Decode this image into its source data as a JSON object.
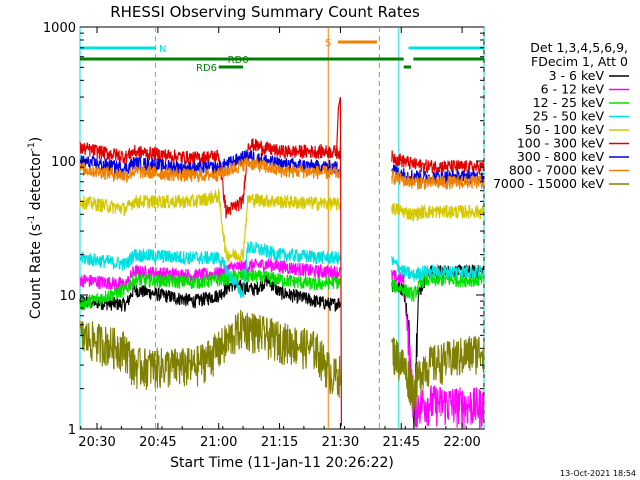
{
  "chart_data": {
    "type": "line",
    "title": "RHESSI Observing Summary Count Rates",
    "xlabel": "Start Time (11-Jan-11 20:26:22)",
    "ylabel": "Count Rate (s",
    "ylabel_sup": "-1",
    "ylabel_end": " detector",
    "ylabel_close": ")",
    "y_scale": "log",
    "ylim": [
      1,
      1000
    ],
    "xlim_minutes": [
      20.43,
      22.09
    ],
    "y_ticks": [
      {
        "value": 1,
        "label": "1"
      },
      {
        "value": 10,
        "label": "10"
      },
      {
        "value": 100,
        "label": "100"
      },
      {
        "value": 1000,
        "label": "1000"
      }
    ],
    "x_ticks": [
      {
        "value": 20.5,
        "label": "20:30"
      },
      {
        "value": 20.75,
        "label": "20:45"
      },
      {
        "value": 21.0,
        "label": "21:00"
      },
      {
        "value": 21.25,
        "label": "21:15"
      },
      {
        "value": 21.5,
        "label": "21:30"
      },
      {
        "value": 21.75,
        "label": "21:45"
      },
      {
        "value": 22.0,
        "label": "22:00"
      }
    ],
    "legend": {
      "placement": "right",
      "header": [
        "Det 1,3,4,5,6,9,",
        "FDecim 1, Att 0"
      ],
      "entries": [
        {
          "label": "3 - 6 keV",
          "color": "#000000"
        },
        {
          "label": "6 - 12 keV",
          "color": "#ff00ff"
        },
        {
          "label": "12 - 25 keV",
          "color": "#00e000"
        },
        {
          "label": "25 - 50 keV",
          "color": "#00e0e0"
        },
        {
          "label": "50 - 100 keV",
          "color": "#d4c800"
        },
        {
          "label": "100 - 300 keV",
          "color": "#e00000"
        },
        {
          "label": "300 - 800 keV",
          "color": "#0000e0"
        },
        {
          "label": "800 - 7000 keV",
          "color": "#f08000"
        },
        {
          "label": "7000 - 15000 keV",
          "color": "#808000"
        }
      ]
    },
    "flag_bars": [
      {
        "label": "N",
        "color": "#00e0e0",
        "level": 1,
        "spans": [
          [
            20.43,
            20.74
          ],
          [
            21.78,
            22.09
          ]
        ],
        "label_at": 20.77
      },
      {
        "label": "S",
        "color": "#f08000",
        "level": 0,
        "spans": [
          [
            21.49,
            21.65
          ]
        ],
        "label_at": 21.45
      },
      {
        "label": "RD0",
        "color": "#008000",
        "level": 2,
        "spans": [
          [
            20.43,
            21.76
          ],
          [
            21.8,
            22.09
          ]
        ],
        "label_at": 21.08
      },
      {
        "label": "RD6",
        "color": "#008000",
        "level": 3,
        "spans": [
          [
            21.0,
            21.1
          ],
          [
            21.76,
            21.79
          ]
        ],
        "label_at": 20.95
      }
    ],
    "markers": [
      {
        "time": 20.43,
        "color": "#00e0e0",
        "style": "solid"
      },
      {
        "time": 20.74,
        "color": "#00e0e0",
        "style": "dashed"
      },
      {
        "time": 21.45,
        "color": "#f08000",
        "style": "solid"
      },
      {
        "time": 21.66,
        "color": "#f08000",
        "style": "dashed"
      },
      {
        "time": 21.74,
        "color": "#00e0e0",
        "style": "solid"
      },
      {
        "time": 22.09,
        "color": "#00e0e0",
        "style": "dashed"
      }
    ],
    "data_gaps": [
      [
        21.5,
        21.71
      ]
    ],
    "series": [
      {
        "name": "3 - 6 keV",
        "color": "#000000",
        "knots": [
          [
            20.43,
            9
          ],
          [
            20.62,
            8.5
          ],
          [
            20.65,
            11
          ],
          [
            20.9,
            9
          ],
          [
            21.0,
            10
          ],
          [
            21.05,
            12
          ],
          [
            21.15,
            11
          ],
          [
            21.2,
            13
          ],
          [
            21.25,
            10.5
          ],
          [
            21.4,
            9
          ],
          [
            21.47,
            8.5
          ],
          [
            21.71,
            12
          ],
          [
            21.76,
            11
          ],
          [
            21.78,
            6
          ],
          [
            21.8,
            1
          ],
          [
            21.82,
            10
          ],
          [
            21.86,
            15
          ],
          [
            22.09,
            15
          ]
        ]
      },
      {
        "name": "6 - 12 keV",
        "color": "#ff00ff",
        "knots": [
          [
            20.43,
            13
          ],
          [
            20.62,
            12
          ],
          [
            20.65,
            15
          ],
          [
            20.9,
            14
          ],
          [
            21.0,
            14.5
          ],
          [
            21.05,
            16
          ],
          [
            21.2,
            17
          ],
          [
            21.4,
            15
          ],
          [
            21.47,
            15
          ],
          [
            21.71,
            14
          ],
          [
            21.76,
            13
          ],
          [
            21.8,
            1.5
          ],
          [
            21.84,
            1.6
          ],
          [
            22.09,
            1.5
          ]
        ]
      },
      {
        "name": "12 - 25 keV",
        "color": "#00e000",
        "knots": [
          [
            20.43,
            8.5
          ],
          [
            20.62,
            11
          ],
          [
            20.65,
            13
          ],
          [
            20.9,
            12.5
          ],
          [
            21.0,
            13
          ],
          [
            21.1,
            14
          ],
          [
            21.2,
            13.5
          ],
          [
            21.4,
            12
          ],
          [
            21.47,
            12.5
          ],
          [
            21.71,
            12
          ],
          [
            21.76,
            11
          ],
          [
            21.8,
            10
          ],
          [
            21.84,
            13
          ],
          [
            22.09,
            13
          ]
        ]
      },
      {
        "name": "25 - 50 keV",
        "color": "#00e0e0",
        "knots": [
          [
            20.43,
            19
          ],
          [
            20.62,
            17
          ],
          [
            20.65,
            20
          ],
          [
            20.9,
            19
          ],
          [
            21.0,
            19
          ],
          [
            21.1,
            10
          ],
          [
            21.12,
            23
          ],
          [
            21.25,
            20
          ],
          [
            21.47,
            19
          ],
          [
            21.71,
            18
          ],
          [
            21.76,
            15
          ],
          [
            21.8,
            14
          ],
          [
            21.84,
            15
          ],
          [
            22.09,
            15
          ]
        ]
      },
      {
        "name": "50 - 100 keV",
        "color": "#d4c800",
        "knots": [
          [
            20.43,
            50
          ],
          [
            20.62,
            44
          ],
          [
            20.65,
            50
          ],
          [
            20.9,
            50
          ],
          [
            21.0,
            55
          ],
          [
            21.03,
            20
          ],
          [
            21.1,
            20
          ],
          [
            21.12,
            52
          ],
          [
            21.25,
            50
          ],
          [
            21.47,
            48
          ],
          [
            21.71,
            45
          ],
          [
            21.76,
            42
          ],
          [
            21.8,
            40
          ],
          [
            21.84,
            42
          ],
          [
            22.09,
            42
          ]
        ]
      },
      {
        "name": "100 - 300 keV",
        "color": "#e00000",
        "knots": [
          [
            20.43,
            125
          ],
          [
            20.62,
            108
          ],
          [
            20.65,
            118
          ],
          [
            20.9,
            105
          ],
          [
            21.0,
            110
          ],
          [
            21.03,
            42
          ],
          [
            21.1,
            50
          ],
          [
            21.12,
            135
          ],
          [
            21.25,
            118
          ],
          [
            21.47,
            118
          ],
          [
            21.71,
            108
          ],
          [
            21.76,
            100
          ],
          [
            21.8,
            95
          ],
          [
            21.84,
            92
          ],
          [
            22.09,
            90
          ]
        ]
      },
      {
        "name": "300 - 800 keV",
        "color": "#0000e0",
        "knots": [
          [
            20.43,
            100
          ],
          [
            20.62,
            88
          ],
          [
            20.65,
            97
          ],
          [
            20.9,
            88
          ],
          [
            21.0,
            90
          ],
          [
            21.12,
            110
          ],
          [
            21.25,
            95
          ],
          [
            21.47,
            90
          ],
          [
            21.71,
            88
          ],
          [
            21.76,
            80
          ],
          [
            21.8,
            78
          ],
          [
            21.84,
            76
          ],
          [
            22.09,
            77
          ]
        ]
      },
      {
        "name": "800 - 7000 keV",
        "color": "#f08000",
        "knots": [
          [
            20.43,
            88
          ],
          [
            20.62,
            78
          ],
          [
            20.65,
            84
          ],
          [
            20.9,
            78
          ],
          [
            21.0,
            80
          ],
          [
            21.12,
            98
          ],
          [
            21.25,
            85
          ],
          [
            21.47,
            82
          ],
          [
            21.71,
            77
          ],
          [
            21.76,
            72
          ],
          [
            21.8,
            70
          ],
          [
            21.84,
            69
          ],
          [
            22.09,
            70
          ]
        ]
      },
      {
        "name": "7000 - 15000 keV",
        "color": "#808000",
        "knots": [
          [
            20.43,
            5
          ],
          [
            20.62,
            4
          ],
          [
            20.65,
            3
          ],
          [
            20.9,
            3
          ],
          [
            21.0,
            4
          ],
          [
            21.1,
            6
          ],
          [
            21.2,
            5
          ],
          [
            21.4,
            4
          ],
          [
            21.47,
            2.5
          ],
          [
            21.71,
            4
          ],
          [
            21.76,
            3
          ],
          [
            21.8,
            2
          ],
          [
            21.84,
            3
          ],
          [
            22.09,
            4
          ]
        ]
      }
    ]
  },
  "footer": {
    "generated": "13-Oct-2021 18:54"
  }
}
